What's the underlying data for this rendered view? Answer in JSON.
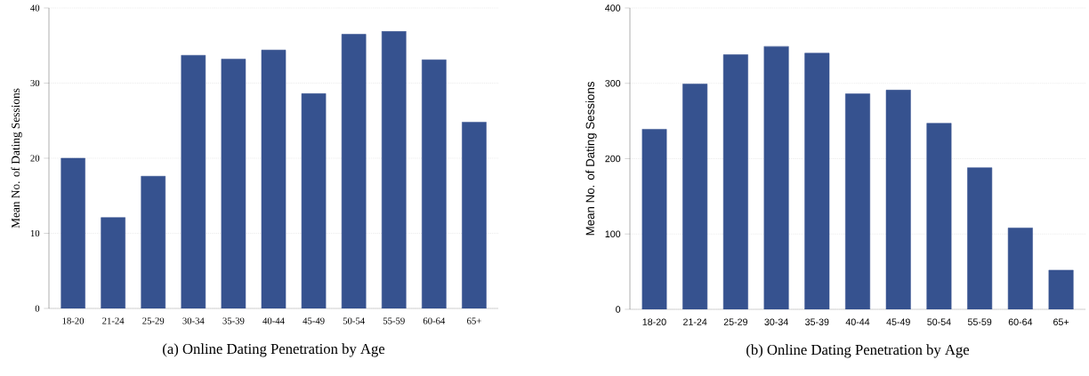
{
  "chart_data": [
    {
      "type": "bar",
      "title": "(a) Online Dating Penetration by Age",
      "ylabel": "Mean No. of Dating Sessions",
      "categories": [
        "18-20",
        "21-24",
        "25-29",
        "30-34",
        "35-39",
        "40-44",
        "45-49",
        "50-54",
        "55-59",
        "60-64",
        "65+"
      ],
      "values": [
        20.0,
        12.1,
        17.6,
        33.7,
        33.2,
        34.4,
        28.6,
        36.5,
        36.9,
        33.1,
        24.8
      ],
      "color": "#36528f",
      "ylim": [
        0,
        40
      ],
      "yticks": [
        0,
        10,
        20,
        30,
        40
      ],
      "grid": "y"
    },
    {
      "type": "bar",
      "title": "(b) Online Dating Penetration by Age",
      "ylabel": "Mean No. of Dating Sessions",
      "categories": [
        "18-20",
        "21-24",
        "25-29",
        "30-34",
        "35-39",
        "40-44",
        "45-49",
        "50-54",
        "55-59",
        "60-64",
        "65+"
      ],
      "values": [
        239,
        299,
        338,
        349,
        340,
        286,
        291,
        247,
        188,
        108,
        52
      ],
      "color": "#36528f",
      "ylim": [
        0,
        400
      ],
      "yticks": [
        0,
        100,
        200,
        300,
        400
      ],
      "grid": "y"
    }
  ]
}
